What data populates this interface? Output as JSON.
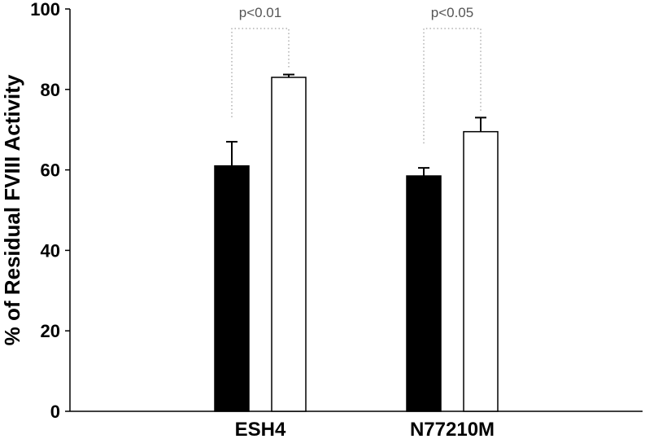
{
  "chart_data": {
    "type": "bar",
    "title": "",
    "xlabel": "",
    "ylabel": "% of Residual FVIII Activity",
    "ylim": [
      0,
      100
    ],
    "yticks": [
      0,
      20,
      40,
      60,
      80,
      100
    ],
    "grid": false,
    "legend": "none",
    "categories": [
      "ESH4",
      "N77210M"
    ],
    "series": [
      {
        "color": "#000000",
        "values": [
          61,
          58.5
        ],
        "errors": [
          6,
          2
        ]
      },
      {
        "color": "#ffffff",
        "values": [
          83,
          69.5
        ],
        "errors": [
          0.7,
          3.5
        ]
      }
    ],
    "annotations": [
      {
        "category": "ESH4",
        "text": "p<0.01"
      },
      {
        "category": "N77210M",
        "text": "p<0.05"
      }
    ]
  }
}
